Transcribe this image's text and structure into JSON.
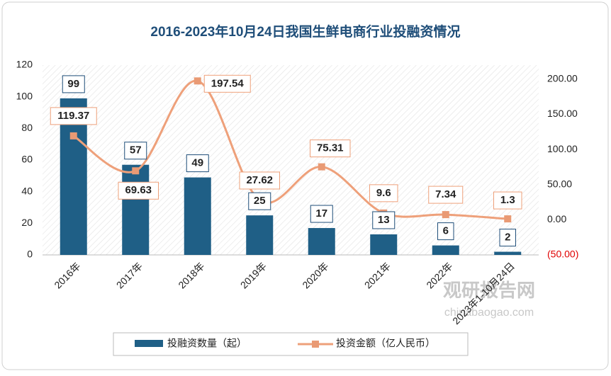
{
  "chart_data": {
    "type": "bar-line",
    "title": "2016-2023年10月24日我国生鲜电商行业投融资情况",
    "categories": [
      "2016年",
      "2017年",
      "2018年",
      "2019年",
      "2020年",
      "2021年",
      "2022年",
      "2023年1-10月24日"
    ],
    "series": [
      {
        "name": "投融资数量（起）",
        "type": "bar",
        "color": "#1f5f86",
        "values": [
          99,
          57,
          49,
          25,
          17,
          13,
          6,
          2
        ]
      },
      {
        "name": "投资金额（亿人民币）",
        "type": "line",
        "axis": "y2",
        "color": "#eea07a",
        "values": [
          119.37,
          69.63,
          197.54,
          27.62,
          75.31,
          9.6,
          7.34,
          1.3
        ]
      }
    ],
    "ylim": [
      0,
      120
    ],
    "yticks": [
      0,
      20,
      40,
      60,
      80,
      100,
      120
    ],
    "y2lim": [
      -50,
      220
    ],
    "y2ticks": [
      {
        "value": -50,
        "label": "(50.00)"
      },
      {
        "value": 0,
        "label": "0.00"
      },
      {
        "value": 50,
        "label": "50.00"
      },
      {
        "value": 100,
        "label": "100.00"
      },
      {
        "value": 150,
        "label": "150.00"
      },
      {
        "value": 200,
        "label": "200.00"
      }
    ],
    "y2_negative_color": "#e00000",
    "legend": "bottom",
    "watermark": {
      "name": "观研报告网",
      "url": "chinabaogao.com"
    }
  }
}
